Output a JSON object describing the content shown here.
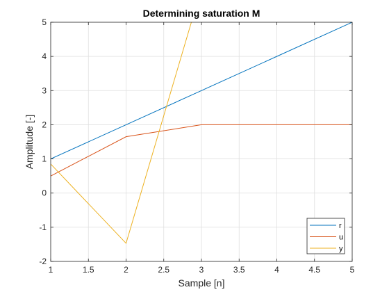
{
  "chart_data": {
    "type": "line",
    "title": "Determining saturation M",
    "xlabel": "Sample [n]",
    "ylabel": "Amplitude [-]",
    "xlim": [
      1,
      5
    ],
    "ylim": [
      -2,
      5
    ],
    "x_ticks": [
      1,
      1.5,
      2,
      2.5,
      3,
      3.5,
      4,
      4.5,
      5
    ],
    "x_tick_labels": [
      "1",
      "1.5",
      "2",
      "2.5",
      "3",
      "3.5",
      "4",
      "4.5",
      "5"
    ],
    "y_ticks": [
      -2,
      -1,
      0,
      1,
      2,
      3,
      4,
      5
    ],
    "y_tick_labels": [
      "-2",
      "-1",
      "0",
      "1",
      "2",
      "3",
      "4",
      "5"
    ],
    "grid": true,
    "legend_position": "bottom-right",
    "x": [
      1,
      2,
      3,
      4,
      5
    ],
    "series": [
      {
        "name": "r",
        "color": "#0072BD",
        "values": [
          1,
          2,
          3,
          4,
          5
        ]
      },
      {
        "name": "u",
        "color": "#D95319",
        "values": [
          0.5,
          1.65,
          2,
          2,
          2
        ]
      },
      {
        "name": "y",
        "color": "#EDB120",
        "values": [
          0.85,
          -1.47,
          6.0,
          null,
          null
        ]
      }
    ]
  }
}
